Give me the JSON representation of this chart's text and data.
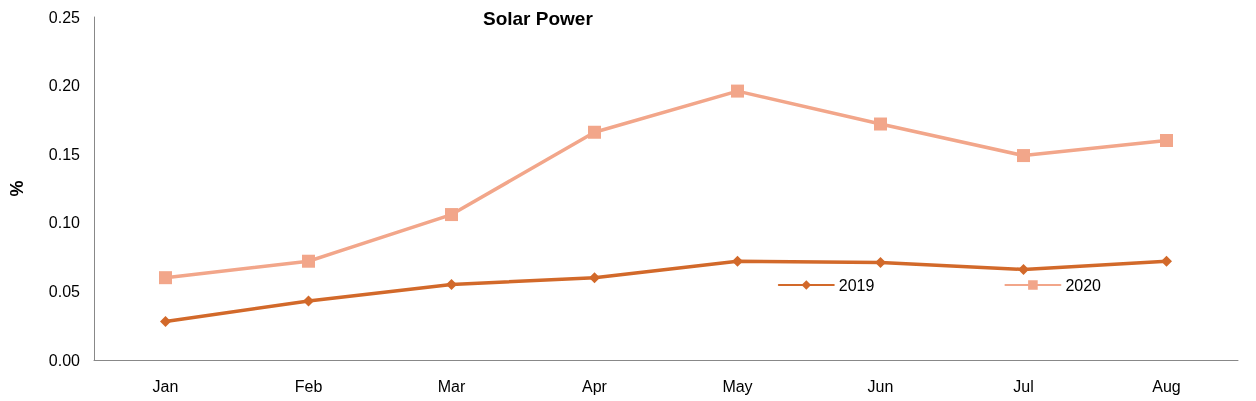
{
  "chart_data": {
    "type": "line",
    "title": "Solar Power",
    "ylabel": "%",
    "categories": [
      "Jan",
      "Feb",
      "Mar",
      "Apr",
      "May",
      "Jun",
      "Jul",
      "Aug"
    ],
    "series": [
      {
        "name": "2019",
        "color": "#d2692a",
        "marker": "diamond",
        "values": [
          0.028,
          0.043,
          0.055,
          0.06,
          0.072,
          0.071,
          0.066,
          0.072
        ]
      },
      {
        "name": "2020",
        "color": "#f2a68a",
        "marker": "square",
        "values": [
          0.06,
          0.072,
          0.106,
          0.166,
          0.196,
          0.172,
          0.149,
          0.16
        ]
      }
    ],
    "ylim": [
      0,
      0.25
    ],
    "yticks": [
      {
        "value": 0,
        "label": "0.00"
      },
      0.05,
      {
        "value": 0.1,
        "label": "0.10"
      },
      0.15,
      {
        "value": 0.2,
        "label": "0.20"
      },
      0.25
    ],
    "grid": false,
    "legend": "bottom right",
    "line_style": "solid"
  }
}
